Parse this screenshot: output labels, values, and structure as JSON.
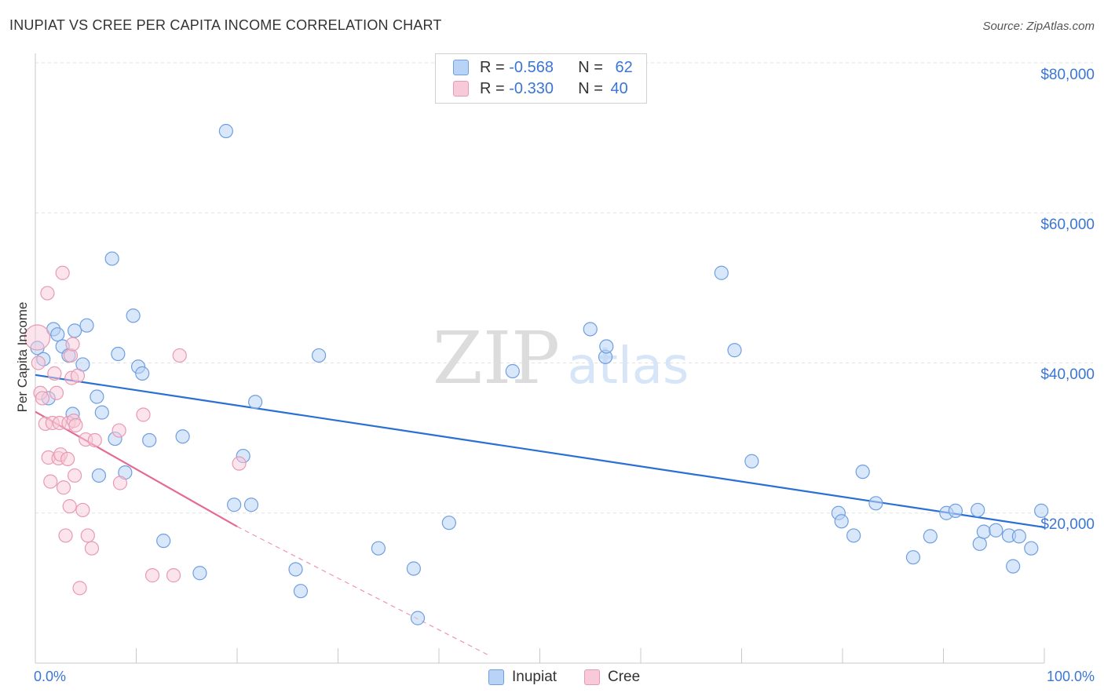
{
  "title": "INUPIAT VS CREE PER CAPITA INCOME CORRELATION CHART",
  "source": "Source: ZipAtlas.com",
  "watermark": {
    "zip": "ZIP",
    "atlas": "atlas"
  },
  "legend": {
    "rows": [
      {
        "r_label": "R = ",
        "r_value": "-0.568",
        "n_label": "N = ",
        "n_value": "62",
        "fill": "#b8d3f5",
        "stroke": "#6f9fe0"
      },
      {
        "r_label": "R = ",
        "r_value": "-0.330",
        "n_label": "N = ",
        "n_value": "40",
        "fill": "#f8c9d8",
        "stroke": "#e89ab2"
      }
    ]
  },
  "bottom_legend": {
    "series1": "Inupiat",
    "series2": "Cree"
  },
  "colors": {
    "inupiat_fill": "#b8d3f5",
    "inupiat_stroke": "#6f9fe0",
    "inupiat_line": "#2a6fd4",
    "cree_fill": "#f8c9d8",
    "cree_stroke": "#e89ab2",
    "cree_line": "#e46a93",
    "grid": "#e1e1e1",
    "tick_label": "#3a76d4"
  },
  "chart_data": {
    "type": "scatter",
    "title": "INUPIAT VS CREE PER CAPITA INCOME CORRELATION CHART",
    "xlabel": "",
    "ylabel": "Per Capita Income",
    "xlim": [
      0,
      100
    ],
    "ylim": [
      0,
      80000
    ],
    "x_tick_labels": {
      "min": "0.0%",
      "max": "100.0%"
    },
    "y_ticks": [
      {
        "value": 20000,
        "label": "$20,000"
      },
      {
        "value": 40000,
        "label": "$40,000"
      },
      {
        "value": 60000,
        "label": "$60,000"
      },
      {
        "value": 80000,
        "label": "$80,000"
      }
    ],
    "grid": true,
    "legend_position": "top-center",
    "series": [
      {
        "name": "Inupiat",
        "r": -0.568,
        "n": 62,
        "trend": {
          "x0": 0,
          "y0": 38400,
          "x1": 100,
          "y1": 18100
        },
        "points": [
          [
            0.2,
            42000
          ],
          [
            0.8,
            40500
          ],
          [
            1.3,
            35300
          ],
          [
            1.8,
            44500
          ],
          [
            2.2,
            43800
          ],
          [
            2.7,
            42200
          ],
          [
            3.3,
            41000
          ],
          [
            3.7,
            33200
          ],
          [
            3.9,
            44300
          ],
          [
            4.7,
            39800
          ],
          [
            5.1,
            45000
          ],
          [
            6.1,
            35500
          ],
          [
            6.3,
            25000
          ],
          [
            6.6,
            33400
          ],
          [
            7.6,
            53900
          ],
          [
            7.9,
            29900
          ],
          [
            8.2,
            41200
          ],
          [
            8.9,
            25400
          ],
          [
            9.7,
            46300
          ],
          [
            10.2,
            39500
          ],
          [
            10.6,
            38600
          ],
          [
            11.3,
            29700
          ],
          [
            12.7,
            16300
          ],
          [
            14.6,
            30200
          ],
          [
            16.3,
            12000
          ],
          [
            18.9,
            70900
          ],
          [
            19.7,
            21100
          ],
          [
            20.6,
            27600
          ],
          [
            21.4,
            21100
          ],
          [
            21.8,
            34800
          ],
          [
            25.8,
            12500
          ],
          [
            26.3,
            9600
          ],
          [
            28.1,
            41000
          ],
          [
            34.0,
            15300
          ],
          [
            37.5,
            12600
          ],
          [
            37.9,
            6000
          ],
          [
            41.0,
            18700
          ],
          [
            47.3,
            38900
          ],
          [
            55.0,
            44500
          ],
          [
            56.5,
            40800
          ],
          [
            56.6,
            42200
          ],
          [
            68.0,
            52000
          ],
          [
            69.3,
            41700
          ],
          [
            71.0,
            26900
          ],
          [
            79.6,
            20000
          ],
          [
            79.9,
            18900
          ],
          [
            81.1,
            17000
          ],
          [
            82.0,
            25500
          ],
          [
            83.3,
            21300
          ],
          [
            87.0,
            14100
          ],
          [
            88.7,
            16900
          ],
          [
            90.3,
            20000
          ],
          [
            91.2,
            20300
          ],
          [
            93.4,
            20400
          ],
          [
            93.6,
            15900
          ],
          [
            94.0,
            17500
          ],
          [
            95.2,
            17700
          ],
          [
            96.5,
            17000
          ],
          [
            96.9,
            12900
          ],
          [
            97.5,
            16900
          ],
          [
            98.7,
            15300
          ],
          [
            99.7,
            20300
          ]
        ]
      },
      {
        "name": "Cree",
        "r": -0.33,
        "n": 40,
        "trend": {
          "x0": 0,
          "y0": 33500,
          "x1": 20,
          "y1": 18200,
          "dash_x1": 45,
          "dash_y1": 1000
        },
        "points": [
          [
            0.2,
            43400
          ],
          [
            0.3,
            40000
          ],
          [
            0.5,
            36000
          ],
          [
            0.7,
            35300
          ],
          [
            1.0,
            31900
          ],
          [
            1.2,
            49300
          ],
          [
            1.3,
            27400
          ],
          [
            1.5,
            24200
          ],
          [
            1.7,
            32000
          ],
          [
            1.9,
            38600
          ],
          [
            2.1,
            36000
          ],
          [
            2.3,
            27300
          ],
          [
            2.4,
            32000
          ],
          [
            2.5,
            27800
          ],
          [
            2.7,
            52000
          ],
          [
            2.8,
            23400
          ],
          [
            3.0,
            17000
          ],
          [
            3.2,
            27200
          ],
          [
            3.3,
            32000
          ],
          [
            3.4,
            20900
          ],
          [
            3.5,
            41000
          ],
          [
            3.6,
            38000
          ],
          [
            3.7,
            42500
          ],
          [
            3.8,
            32300
          ],
          [
            3.9,
            25000
          ],
          [
            4.0,
            31700
          ],
          [
            4.2,
            38300
          ],
          [
            4.4,
            10000
          ],
          [
            4.7,
            20400
          ],
          [
            5.0,
            29800
          ],
          [
            5.2,
            17000
          ],
          [
            5.6,
            15300
          ],
          [
            5.9,
            29700
          ],
          [
            8.3,
            31000
          ],
          [
            8.4,
            24000
          ],
          [
            10.7,
            33100
          ],
          [
            11.6,
            11700
          ],
          [
            13.7,
            11700
          ],
          [
            14.3,
            41000
          ],
          [
            20.2,
            26600
          ]
        ]
      }
    ]
  }
}
